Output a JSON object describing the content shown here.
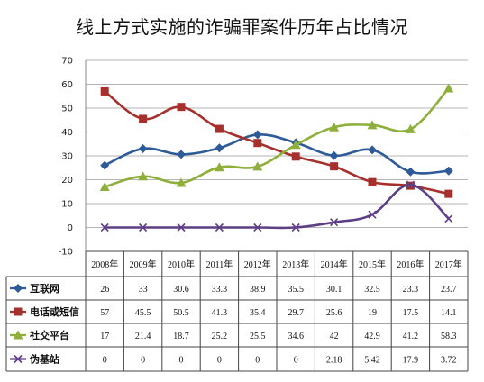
{
  "chart_data": {
    "type": "line",
    "title": "线上方式实施的诈骗罪案件历年占比情况",
    "categories": [
      "2008年",
      "2009年",
      "2010年",
      "2011年",
      "2012年",
      "2013年",
      "2014年",
      "2015年",
      "2016年",
      "2017年"
    ],
    "ylim": [
      -10,
      70
    ],
    "yticks": [
      -10,
      0,
      10,
      20,
      30,
      40,
      50,
      60,
      70
    ],
    "grid": "horizontal",
    "legend": "bottom-table",
    "series": [
      {
        "name": "互联网",
        "color": "#2E5A97",
        "marker": "diamond",
        "values": [
          26,
          33,
          30.6,
          33.3,
          38.9,
          35.5,
          30.1,
          32.5,
          23.3,
          23.7
        ],
        "labels": [
          "26",
          "33",
          "30.6",
          "33.3",
          "38.9",
          "35.5",
          "30.1",
          "32.5",
          "23.3",
          "23.7"
        ]
      },
      {
        "name": "电话或短信",
        "color": "#A6302C",
        "marker": "square",
        "values": [
          57,
          45.5,
          50.5,
          41.3,
          35.4,
          29.7,
          25.6,
          19,
          17.5,
          14.1
        ],
        "labels": [
          "57",
          "45.5",
          "50.5",
          "41.3",
          "35.4",
          "29.7",
          "25.6",
          "19",
          "17.5",
          "14.1"
        ]
      },
      {
        "name": "社交平台",
        "color": "#8EAF3A",
        "marker": "triangle",
        "values": [
          17,
          21.4,
          18.7,
          25.2,
          25.5,
          34.6,
          42,
          42.9,
          41.2,
          58.3
        ],
        "labels": [
          "17",
          "21.4",
          "18.7",
          "25.2",
          "25.5",
          "34.6",
          "42",
          "42.9",
          "41.2",
          "58.3"
        ]
      },
      {
        "name": "伪基站",
        "color": "#5E3F86",
        "marker": "x",
        "values": [
          0,
          0,
          0,
          0,
          0,
          0,
          2.18,
          5.42,
          17.9,
          3.72
        ],
        "labels": [
          "0",
          "0",
          "0",
          "0",
          "0",
          "0",
          "2.18",
          "5.42",
          "17.9",
          "3.72"
        ]
      }
    ]
  }
}
